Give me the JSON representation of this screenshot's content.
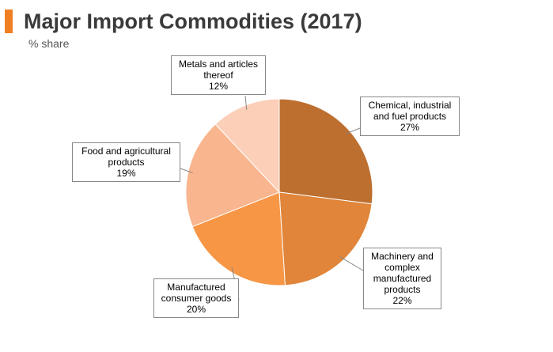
{
  "header": {
    "title": "Major Import Commodities (2017)",
    "subtitle": "% share",
    "accent_color": "#ef7f22"
  },
  "chart_data": {
    "type": "pie",
    "title": "Major Import Commodities (2017)",
    "subtitle": "% share",
    "start_angle_deg": 0,
    "direction": "clockwise",
    "slices": [
      {
        "label_lines": [
          "Chemical, industrial",
          "and fuel products"
        ],
        "value": 27,
        "value_label": "27%",
        "color": "#bd6f30"
      },
      {
        "label_lines": [
          "Machinery and",
          "complex",
          "manufactured",
          "products"
        ],
        "value": 22,
        "value_label": "22%",
        "color": "#e0853a"
      },
      {
        "label_lines": [
          "Manufactured",
          "consumer goods"
        ],
        "value": 20,
        "value_label": "20%",
        "color": "#f79645"
      },
      {
        "label_lines": [
          "Food and agricultural",
          "products"
        ],
        "value": 19,
        "value_label": "19%",
        "color": "#f9b58e"
      },
      {
        "label_lines": [
          "Metals and articles",
          "thereof"
        ],
        "value": 12,
        "value_label": "12%",
        "color": "#fccfb8"
      }
    ],
    "legend": "none",
    "data_labels": "callout"
  }
}
